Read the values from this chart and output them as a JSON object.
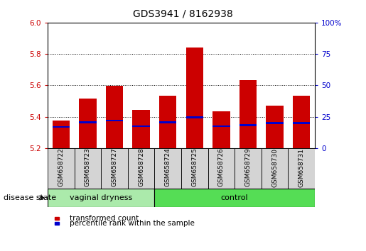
{
  "title": "GDS3941 / 8162938",
  "samples": [
    "GSM658722",
    "GSM658723",
    "GSM658727",
    "GSM658728",
    "GSM658724",
    "GSM658725",
    "GSM658726",
    "GSM658729",
    "GSM658730",
    "GSM658731"
  ],
  "bar_tops": [
    5.375,
    5.515,
    5.595,
    5.445,
    5.535,
    5.84,
    5.435,
    5.635,
    5.47,
    5.535
  ],
  "bar_bottom": 5.2,
  "percentile_values": [
    5.335,
    5.365,
    5.375,
    5.34,
    5.365,
    5.395,
    5.34,
    5.345,
    5.36,
    5.36
  ],
  "bar_color": "#cc0000",
  "percentile_color": "#0000cc",
  "ylim_left": [
    5.2,
    6.0
  ],
  "ylim_right": [
    0,
    100
  ],
  "yticks_left": [
    5.2,
    5.4,
    5.6,
    5.8,
    6.0
  ],
  "yticks_right": [
    0,
    25,
    50,
    75,
    100
  ],
  "grid_values": [
    5.4,
    5.6,
    5.8
  ],
  "n_vaginal": 4,
  "group_label": "disease state",
  "group1_label": "vaginal dryness",
  "group2_label": "control",
  "group1_color": "#abeaab",
  "group2_color": "#55dd55",
  "sample_box_color": "#d4d4d4",
  "legend_red_label": "transformed count",
  "legend_blue_label": "percentile rank within the sample",
  "bar_width": 0.65,
  "tick_color_left": "#cc0000",
  "tick_color_right": "#0000cc",
  "pct_bar_height": 0.012,
  "title_fontsize": 10,
  "tick_fontsize": 7.5,
  "sample_fontsize": 6.5,
  "group_fontsize": 8,
  "legend_fontsize": 7.5
}
